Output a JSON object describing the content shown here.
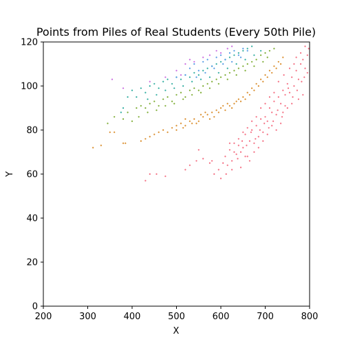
{
  "chart_data": {
    "type": "scatter",
    "title": "Points from Piles of Real Students (Every 50th Pile)",
    "xlabel": "X",
    "ylabel": "Y",
    "xlim": [
      200,
      800
    ],
    "ylim": [
      0,
      120
    ],
    "xticks": [
      "200",
      "300",
      "400",
      "500",
      "600",
      "700",
      "800"
    ],
    "yticks": [
      "0",
      "20",
      "40",
      "60",
      "80",
      "100",
      "120"
    ],
    "grid": false,
    "legend": "none",
    "series": [
      {
        "color": "#f46b7f",
        "points": [
          [
            430,
            57
          ],
          [
            440,
            60
          ],
          [
            455,
            60
          ],
          [
            475,
            59
          ],
          [
            520,
            62
          ],
          [
            530,
            64
          ],
          [
            545,
            66
          ],
          [
            550,
            71
          ],
          [
            560,
            67
          ],
          [
            575,
            65
          ],
          [
            580,
            66
          ],
          [
            585,
            60
          ],
          [
            595,
            62
          ],
          [
            600,
            58
          ],
          [
            605,
            65
          ],
          [
            610,
            68
          ],
          [
            615,
            64
          ],
          [
            620,
            71
          ],
          [
            625,
            66
          ],
          [
            630,
            74
          ],
          [
            640,
            76
          ],
          [
            645,
            70
          ],
          [
            650,
            72
          ],
          [
            655,
            78
          ],
          [
            660,
            68
          ],
          [
            665,
            75
          ],
          [
            670,
            80
          ],
          [
            675,
            74
          ],
          [
            680,
            82
          ],
          [
            685,
            77
          ],
          [
            690,
            85
          ],
          [
            695,
            79
          ],
          [
            700,
            86
          ],
          [
            705,
            84
          ],
          [
            710,
            90
          ],
          [
            715,
            88
          ],
          [
            720,
            93
          ],
          [
            725,
            87
          ],
          [
            730,
            95
          ],
          [
            735,
            92
          ],
          [
            740,
            98
          ],
          [
            745,
            96
          ],
          [
            750,
            101
          ],
          [
            755,
            97
          ],
          [
            760,
            104
          ],
          [
            765,
            100
          ],
          [
            770,
            107
          ],
          [
            775,
            103
          ],
          [
            780,
            110
          ],
          [
            785,
            112
          ],
          [
            790,
            108
          ],
          [
            795,
            114
          ],
          [
            798,
            117
          ],
          [
            720,
            97
          ],
          [
            730,
            102
          ],
          [
            742,
            105
          ],
          [
            752,
            99
          ],
          [
            762,
            95
          ],
          [
            772,
            98
          ],
          [
            782,
            102
          ],
          [
            788,
            104
          ],
          [
            760,
            92
          ],
          [
            750,
            90
          ],
          [
            740,
            88
          ],
          [
            735,
            83
          ],
          [
            725,
            80
          ],
          [
            715,
            82
          ],
          [
            705,
            78
          ],
          [
            695,
            75
          ],
          [
            685,
            72
          ],
          [
            675,
            70
          ],
          [
            665,
            66
          ],
          [
            655,
            68
          ],
          [
            645,
            63
          ],
          [
            635,
            69
          ],
          [
            625,
            62
          ],
          [
            612,
            60
          ],
          [
            700,
            92
          ],
          [
            710,
            95
          ],
          [
            690,
            90
          ],
          [
            680,
            86
          ],
          [
            670,
            84
          ],
          [
            660,
            81
          ],
          [
            650,
            79
          ],
          [
            640,
            73
          ],
          [
            630,
            70
          ],
          [
            620,
            74
          ],
          [
            770,
            113
          ],
          [
            780,
            115
          ],
          [
            790,
            118
          ],
          [
            795,
            106
          ],
          [
            785,
            96
          ],
          [
            775,
            94
          ],
          [
            765,
            110
          ],
          [
            755,
            108
          ],
          [
            745,
            91
          ],
          [
            738,
            86
          ],
          [
            728,
            89
          ],
          [
            718,
            84
          ],
          [
            708,
            81
          ],
          [
            698,
            83
          ],
          [
            688,
            80
          ],
          [
            678,
            76
          ],
          [
            668,
            79
          ],
          [
            658,
            73
          ],
          [
            648,
            75
          ],
          [
            638,
            67
          ]
        ]
      },
      {
        "color": "#d98a26",
        "points": [
          [
            312,
            72
          ],
          [
            330,
            73
          ],
          [
            350,
            79
          ],
          [
            360,
            79
          ],
          [
            380,
            74
          ],
          [
            385,
            74
          ],
          [
            420,
            75
          ],
          [
            430,
            76
          ],
          [
            440,
            77
          ],
          [
            450,
            78
          ],
          [
            460,
            79
          ],
          [
            470,
            80
          ],
          [
            480,
            79
          ],
          [
            490,
            81
          ],
          [
            500,
            82
          ],
          [
            510,
            83
          ],
          [
            520,
            82
          ],
          [
            530,
            84
          ],
          [
            540,
            85
          ],
          [
            550,
            84
          ],
          [
            560,
            86
          ],
          [
            570,
            87
          ],
          [
            580,
            88
          ],
          [
            590,
            89
          ],
          [
            600,
            90
          ],
          [
            610,
            89
          ],
          [
            620,
            91
          ],
          [
            630,
            92
          ],
          [
            640,
            94
          ],
          [
            650,
            95
          ],
          [
            660,
            97
          ],
          [
            670,
            99
          ],
          [
            680,
            101
          ],
          [
            690,
            103
          ],
          [
            700,
            105
          ],
          [
            710,
            107
          ],
          [
            720,
            109
          ],
          [
            730,
            111
          ],
          [
            740,
            113
          ],
          [
            500,
            80
          ],
          [
            520,
            85
          ],
          [
            545,
            83
          ],
          [
            565,
            88
          ],
          [
            585,
            86
          ],
          [
            605,
            91
          ],
          [
            625,
            90
          ],
          [
            645,
            93
          ],
          [
            665,
            96
          ],
          [
            685,
            100
          ],
          [
            705,
            104
          ],
          [
            725,
            108
          ],
          [
            735,
            110
          ],
          [
            715,
            106
          ],
          [
            695,
            102
          ],
          [
            675,
            98
          ],
          [
            655,
            94
          ],
          [
            635,
            93
          ],
          [
            615,
            92
          ],
          [
            595,
            88
          ],
          [
            575,
            85
          ],
          [
            555,
            87
          ],
          [
            535,
            83
          ],
          [
            515,
            81
          ]
        ]
      },
      {
        "color": "#7aaa2e",
        "points": [
          [
            345,
            83
          ],
          [
            360,
            86
          ],
          [
            380,
            85
          ],
          [
            390,
            88
          ],
          [
            400,
            84
          ],
          [
            410,
            90
          ],
          [
            420,
            91
          ],
          [
            430,
            90
          ],
          [
            440,
            92
          ],
          [
            450,
            93
          ],
          [
            460,
            91
          ],
          [
            470,
            94
          ],
          [
            480,
            95
          ],
          [
            490,
            93
          ],
          [
            500,
            96
          ],
          [
            510,
            97
          ],
          [
            520,
            95
          ],
          [
            530,
            98
          ],
          [
            540,
            99
          ],
          [
            550,
            98
          ],
          [
            560,
            100
          ],
          [
            570,
            101
          ],
          [
            580,
            102
          ],
          [
            590,
            103
          ],
          [
            600,
            104
          ],
          [
            610,
            105
          ],
          [
            620,
            106
          ],
          [
            630,
            107
          ],
          [
            640,
            108
          ],
          [
            650,
            109
          ],
          [
            660,
            110
          ],
          [
            670,
            111
          ],
          [
            680,
            112
          ],
          [
            690,
            114
          ],
          [
            700,
            115
          ],
          [
            710,
            116
          ],
          [
            720,
            117
          ],
          [
            415,
            86
          ],
          [
            435,
            88
          ],
          [
            455,
            89
          ],
          [
            475,
            91
          ],
          [
            495,
            92
          ],
          [
            515,
            94
          ],
          [
            535,
            96
          ],
          [
            555,
            97
          ],
          [
            575,
            99
          ],
          [
            595,
            101
          ],
          [
            615,
            103
          ],
          [
            635,
            105
          ],
          [
            655,
            107
          ],
          [
            675,
            109
          ],
          [
            695,
            111
          ],
          [
            705,
            113
          ]
        ]
      },
      {
        "color": "#2bab9e",
        "points": [
          [
            375,
            88
          ],
          [
            380,
            90
          ],
          [
            390,
            95
          ],
          [
            400,
            98
          ],
          [
            410,
            95
          ],
          [
            420,
            99
          ],
          [
            430,
            97
          ],
          [
            440,
            100
          ],
          [
            450,
            101
          ],
          [
            460,
            99
          ],
          [
            470,
            102
          ],
          [
            480,
            103
          ],
          [
            490,
            101
          ],
          [
            500,
            104
          ],
          [
            510,
            103
          ],
          [
            520,
            105
          ],
          [
            530,
            104
          ],
          [
            540,
            106
          ],
          [
            550,
            105
          ],
          [
            560,
            107
          ],
          [
            570,
            108
          ],
          [
            580,
            109
          ],
          [
            590,
            110
          ],
          [
            600,
            111
          ],
          [
            610,
            112
          ],
          [
            620,
            113
          ],
          [
            630,
            114
          ],
          [
            640,
            115
          ],
          [
            650,
            116
          ],
          [
            660,
            117
          ],
          [
            670,
            118
          ],
          [
            435,
            94
          ],
          [
            455,
            96
          ],
          [
            475,
            98
          ],
          [
            495,
            99
          ],
          [
            515,
            100
          ],
          [
            535,
            102
          ],
          [
            555,
            103
          ],
          [
            575,
            104
          ],
          [
            595,
            106
          ],
          [
            615,
            108
          ],
          [
            635,
            110
          ],
          [
            655,
            112
          ],
          [
            675,
            114
          ],
          [
            690,
            116
          ]
        ]
      },
      {
        "color": "#4f97e3",
        "points": [
          [
            500,
            104
          ],
          [
            520,
            105
          ],
          [
            530,
            108
          ],
          [
            540,
            110
          ],
          [
            550,
            107
          ],
          [
            560,
            111
          ],
          [
            570,
            112
          ],
          [
            580,
            109
          ],
          [
            590,
            113
          ],
          [
            600,
            114
          ],
          [
            610,
            112
          ],
          [
            620,
            115
          ],
          [
            630,
            116
          ],
          [
            640,
            114
          ],
          [
            650,
            117
          ],
          [
            660,
            116
          ],
          [
            545,
            104
          ],
          [
            565,
            106
          ],
          [
            585,
            108
          ],
          [
            605,
            110
          ],
          [
            625,
            111
          ],
          [
            645,
            113
          ]
        ]
      },
      {
        "color": "#c969e0",
        "points": [
          [
            355,
            103
          ],
          [
            380,
            99
          ],
          [
            440,
            102
          ],
          [
            475,
            104
          ],
          [
            520,
            110
          ],
          [
            540,
            111
          ],
          [
            560,
            113
          ],
          [
            575,
            114
          ],
          [
            590,
            116
          ],
          [
            600,
            115
          ],
          [
            615,
            117
          ],
          [
            625,
            118
          ],
          [
            500,
            107
          ],
          [
            510,
            105
          ],
          [
            530,
            112
          ]
        ]
      }
    ]
  }
}
